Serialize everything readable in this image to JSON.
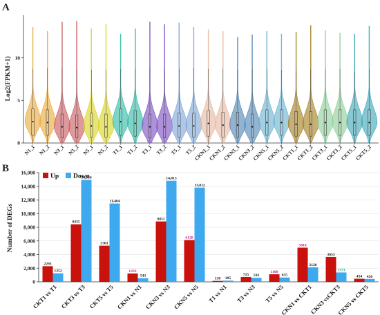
{
  "panels": {
    "a_letter": "A",
    "b_letter": "B"
  },
  "chart_data": [
    {
      "type": "violin",
      "title": "",
      "xlabel": "",
      "ylabel": "Log2(FPKM+1)",
      "ylim": [
        0,
        15
      ],
      "yticks": [
        0,
        5,
        10
      ],
      "categories": [
        "N1_1",
        "N1_2",
        "N3_1",
        "N3_2",
        "N5_1",
        "N5_2",
        "T1_1",
        "T1_2",
        "T3_1",
        "T3_2",
        "T5_1",
        "T5_2",
        "CKN1_1",
        "CKN1_2",
        "CKN3_1",
        "CKN3_2",
        "CKN5_1",
        "CKN5_2",
        "CKT1_1",
        "CKT1_2",
        "CKT3_1",
        "CKT3_2",
        "CKT5_1",
        "CKT5_2"
      ],
      "colors": [
        "#e9a93a",
        "#e9a93a",
        "#c85a5e",
        "#c85a5e",
        "#d9d326",
        "#d9d326",
        "#2fbca5",
        "#2fbca5",
        "#7b4fc4",
        "#7b4fc4",
        "#7fa6d6",
        "#7fa6d6",
        "#e7b8a2",
        "#e7b8a2",
        "#4f86b5",
        "#4f86b5",
        "#69b2cf",
        "#69b2cf",
        "#a47f22",
        "#a47f22",
        "#8ecf99",
        "#8ecf99",
        "#3ea7b6",
        "#3ea7b6"
      ],
      "medians": [
        2.5,
        2.4,
        1.9,
        1.8,
        2.0,
        1.9,
        2.5,
        2.3,
        1.9,
        1.9,
        2.0,
        2.0,
        2.3,
        2.1,
        2.1,
        1.9,
        2.4,
        2.4,
        2.2,
        2.2,
        2.4,
        2.4,
        2.4,
        2.4
      ],
      "q1": [
        0.9,
        0.9,
        0.6,
        0.6,
        0.7,
        0.7,
        0.9,
        0.8,
        0.6,
        0.6,
        0.7,
        0.7,
        0.8,
        0.7,
        0.7,
        0.6,
        0.9,
        0.9,
        0.8,
        0.8,
        0.9,
        0.9,
        0.9,
        0.9
      ],
      "q3": [
        4.0,
        3.9,
        3.4,
        3.3,
        3.5,
        3.4,
        4.0,
        3.8,
        3.4,
        3.4,
        3.5,
        3.5,
        3.8,
        3.6,
        3.6,
        3.4,
        3.9,
        3.9,
        3.7,
        3.7,
        3.9,
        3.9,
        3.9,
        3.9
      ],
      "max": [
        13.6,
        13.1,
        14.2,
        14.3,
        13.4,
        13.9,
        12.8,
        13.4,
        14.2,
        13.9,
        14.1,
        13.6,
        13.3,
        13.1,
        12.4,
        12.7,
        13.1,
        12.8,
        13.0,
        13.8,
        13.2,
        12.9,
        12.8,
        13.7
      ],
      "whisker_top": [
        8.7,
        8.8,
        8.7,
        8.6,
        8.6,
        8.6,
        8.7,
        8.7,
        8.8,
        8.7,
        8.7,
        8.8,
        8.7,
        8.7,
        8.6,
        8.7,
        8.7,
        8.6,
        8.5,
        8.6,
        8.7,
        8.7,
        8.4,
        8.7
      ]
    },
    {
      "type": "bar",
      "title": "",
      "xlabel": "",
      "ylabel": "Number of DEGs",
      "ylim": [
        0,
        16000
      ],
      "yticks": [
        0,
        2000,
        4000,
        6000,
        8000,
        10000,
        12000,
        14000,
        16000
      ],
      "ytick_labels": [
        "0",
        "2,000",
        "4,000",
        "6,000",
        "8,000",
        "10,000",
        "12,000",
        "14,000",
        "16,000"
      ],
      "legend_position": "top-left",
      "categories": [
        "CKT1 vs T1",
        "CKT3 vs T3",
        "CKT5 vs T5",
        "CKN1 vs N1",
        "CKN3 vs N3",
        "CKN5 vs N5",
        "T1 vs N1",
        "T3 vs N3",
        "T5 vs N5",
        "CKN1 vs CKT1",
        "CKN3 vsCKT3",
        "CKN5 vs CKT5"
      ],
      "series": [
        {
          "name": "Up",
          "color": "#c8120b",
          "values": [
            2293,
            8435,
            5301,
            1233,
            8851,
            6128,
            138,
            715,
            1108,
            5010,
            3653,
            454
          ],
          "labels": [
            "2293",
            "8435",
            "5301",
            "1233",
            "8851",
            "6128",
            "138",
            "715",
            "1108",
            "5010",
            "3653",
            "454"
          ],
          "label_colors": [
            "#111111",
            "#111111",
            "#111111",
            "#c0188a",
            "#111111",
            "#c0188a",
            "#111111",
            "#111111",
            "#c0188a",
            "#c0188a",
            "#111111",
            "#111111"
          ]
        },
        {
          "name": "Down",
          "color": "#3fa9f0",
          "values": [
            1252,
            14956,
            11484,
            543,
            14815,
            13812,
            185,
            593,
            635,
            2126,
            1373,
            420
          ],
          "labels": [
            "1252",
            "14,956",
            "11,484",
            "543",
            "14,815",
            "13,812",
            "185",
            "593",
            "635",
            "2126",
            "1373",
            "420"
          ],
          "label_colors": [
            "#111111",
            "#111111",
            "#111111",
            "#111111",
            "#111111",
            "#111111",
            "#111111",
            "#111111",
            "#111111",
            "#111111",
            "#18a070",
            "#111111"
          ]
        }
      ]
    }
  ]
}
